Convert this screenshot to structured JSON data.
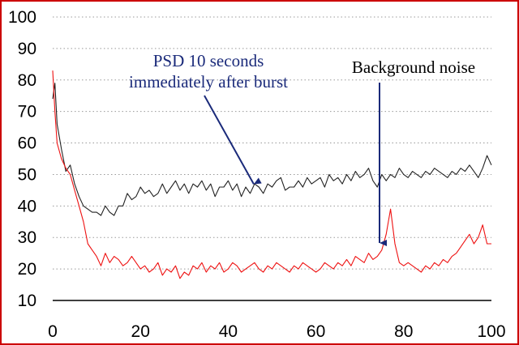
{
  "chart_data": {
    "type": "line",
    "xlim": [
      0,
      100
    ],
    "ylim": [
      10,
      100
    ],
    "x_ticks": [
      "0",
      "20",
      "40",
      "60",
      "80",
      "100"
    ],
    "y_ticks": [
      "10",
      "20",
      "30",
      "40",
      "50",
      "60",
      "70",
      "80",
      "90",
      "100"
    ],
    "grid": "horizontal dotted",
    "annotations": [
      {
        "lines": [
          "PSD 10 seconds",
          "immediately after burst"
        ],
        "color": "#1a2a7a",
        "arrow_to": [
          34,
          49
        ]
      },
      {
        "lines": [
          "Background noise"
        ],
        "color": "#000000",
        "arrow_to": [
          74,
          27
        ]
      }
    ],
    "series": [
      {
        "color": "#222222",
        "x": [
          0,
          0.5,
          1,
          2,
          3,
          4,
          5,
          6,
          7,
          8,
          9,
          10,
          11,
          12,
          13,
          14,
          15,
          16,
          17,
          18,
          19,
          20,
          21,
          22,
          23,
          24,
          25,
          26,
          27,
          28,
          29,
          30,
          31,
          32,
          33,
          34,
          35,
          36,
          37,
          38,
          39,
          40,
          41,
          42,
          43,
          44,
          45,
          46,
          47,
          48,
          49,
          50,
          51,
          52,
          53,
          54,
          55,
          56,
          57,
          58,
          59,
          60,
          61,
          62,
          63,
          64,
          65,
          66,
          67,
          68,
          69,
          70,
          71,
          72,
          73,
          74,
          75,
          76,
          77,
          78,
          79,
          80,
          81,
          82,
          83,
          84,
          85,
          86,
          87,
          88,
          89,
          90,
          91,
          92,
          93,
          94,
          95,
          96,
          97,
          98,
          99,
          100
        ],
        "values": [
          74,
          79,
          66,
          58,
          51,
          53,
          47,
          43,
          40,
          39,
          38,
          38,
          37,
          40,
          38,
          37,
          40,
          40,
          44,
          42,
          43,
          46,
          44,
          45,
          43,
          44,
          47,
          44,
          46,
          48,
          45,
          47,
          44,
          47,
          46,
          48,
          45,
          47,
          43,
          46,
          46,
          48,
          45,
          47,
          43,
          46,
          44,
          47,
          46,
          44,
          47,
          46,
          48,
          49,
          45,
          46,
          46,
          48,
          46,
          49,
          47,
          48,
          49,
          46,
          50,
          48,
          49,
          47,
          50,
          48,
          51,
          49,
          50,
          52,
          48,
          46,
          50,
          48,
          50,
          49,
          52,
          50,
          49,
          51,
          50,
          49,
          51,
          50,
          52,
          51,
          50,
          49,
          51,
          50,
          52,
          51,
          53,
          51,
          49,
          52,
          56,
          53
        ]
      },
      {
        "color": "#ee1111",
        "x": [
          0,
          0.5,
          1,
          2,
          3,
          4,
          5,
          6,
          7,
          8,
          9,
          10,
          11,
          12,
          13,
          14,
          15,
          16,
          17,
          18,
          19,
          20,
          21,
          22,
          23,
          24,
          25,
          26,
          27,
          28,
          29,
          30,
          31,
          32,
          33,
          34,
          35,
          36,
          37,
          38,
          39,
          40,
          41,
          42,
          43,
          44,
          45,
          46,
          47,
          48,
          49,
          50,
          51,
          52,
          53,
          54,
          55,
          56,
          57,
          58,
          59,
          60,
          61,
          62,
          63,
          64,
          65,
          66,
          67,
          68,
          69,
          70,
          71,
          72,
          73,
          74,
          75,
          76,
          77,
          78,
          79,
          80,
          81,
          82,
          83,
          84,
          85,
          86,
          87,
          88,
          89,
          90,
          91,
          92,
          93,
          94,
          95,
          96,
          97,
          98,
          99,
          100
        ],
        "values": [
          83,
          70,
          60,
          55,
          52,
          50,
          45,
          40,
          35,
          28,
          26,
          24,
          21,
          25,
          22,
          24,
          23,
          21,
          22,
          24,
          22,
          20,
          21,
          19,
          20,
          22,
          18,
          20,
          19,
          21,
          17,
          19,
          18,
          21,
          20,
          22,
          19,
          21,
          20,
          22,
          19,
          20,
          22,
          21,
          19,
          20,
          21,
          22,
          20,
          19,
          21,
          20,
          22,
          21,
          20,
          19,
          21,
          20,
          22,
          21,
          20,
          19,
          20,
          22,
          21,
          20,
          22,
          21,
          23,
          21,
          24,
          23,
          22,
          25,
          23,
          24,
          26,
          31,
          39,
          28,
          22,
          21,
          22,
          21,
          20,
          19,
          21,
          20,
          22,
          21,
          23,
          22,
          24,
          25,
          27,
          29,
          31,
          28,
          30,
          34,
          28,
          28
        ]
      }
    ]
  }
}
